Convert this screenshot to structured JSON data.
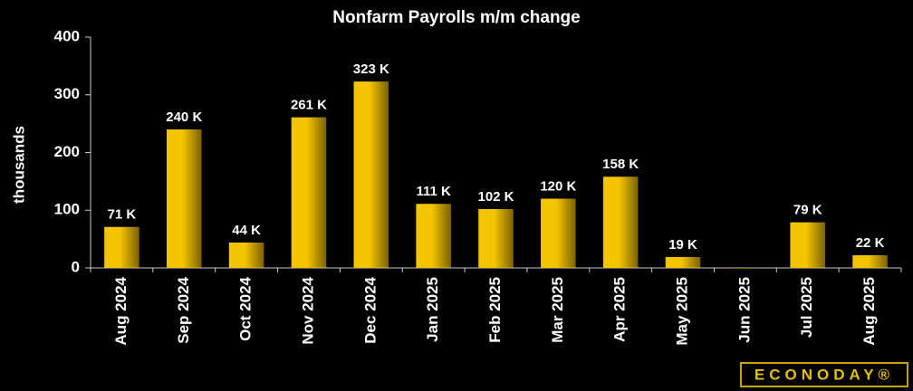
{
  "chart_data": {
    "type": "bar",
    "title": "Nonfarm Payrolls m/m change",
    "y_label": "thousands",
    "categories": [
      "Aug 2024",
      "Sep 2024",
      "Oct 2024",
      "Nov 2024",
      "Dec 2024",
      "Jan 2025",
      "Feb 2025",
      "Mar 2025",
      "Apr 2025",
      "May 2025",
      "Jun 2025",
      "Jul 2025",
      "Aug 2025"
    ],
    "values": [
      71,
      240,
      44,
      261,
      323,
      111,
      102,
      120,
      158,
      19,
      0,
      79,
      22
    ],
    "value_labels": [
      "71 K",
      "240 K",
      "44 K",
      "261 K",
      "323 K",
      "111 K",
      "102 K",
      "120 K",
      "158 K",
      "19 K",
      null,
      "79 K",
      "22 K"
    ],
    "color": "#f5c400",
    "ylim": [
      0,
      400
    ],
    "yticks": [
      0,
      100,
      200,
      300,
      400
    ],
    "grid": false,
    "logo": "ECONODAY®"
  }
}
